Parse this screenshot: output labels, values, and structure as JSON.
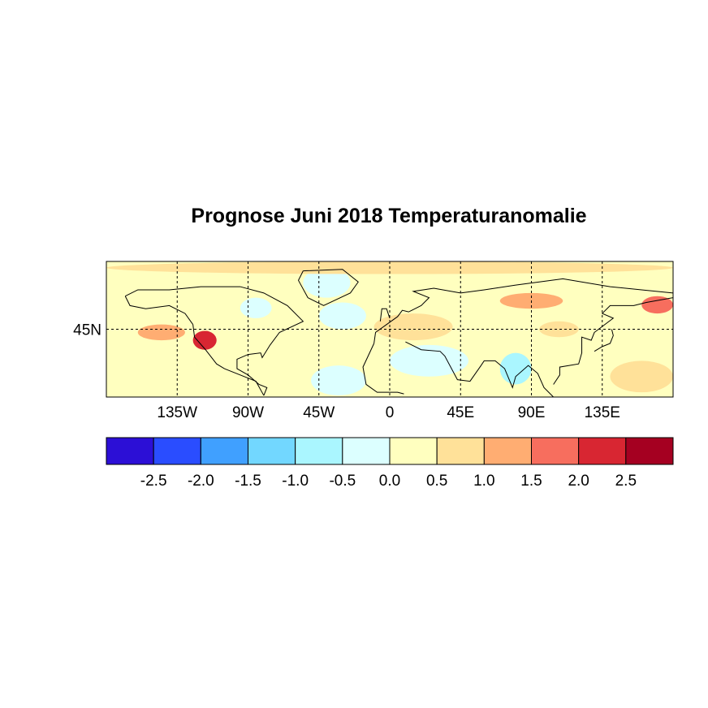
{
  "chart_data": {
    "type": "heatmap",
    "title": "Prognose Juni 2018 Temperaturanomalie",
    "xlim": [
      -180,
      180
    ],
    "ylim": [
      2,
      88
    ],
    "x_ticks": [
      {
        "value": -135,
        "label": "135W"
      },
      {
        "value": -90,
        "label": "90W"
      },
      {
        "value": -45,
        "label": "45W"
      },
      {
        "value": 0,
        "label": "0"
      },
      {
        "value": 45,
        "label": "45E"
      },
      {
        "value": 90,
        "label": "90E"
      },
      {
        "value": 135,
        "label": "135E"
      }
    ],
    "y_ticks": [
      {
        "value": 45,
        "label": "45N"
      }
    ],
    "grid": "dashed",
    "colorbar": {
      "colors": [
        "#2c0fd6",
        "#2a4dff",
        "#40a0ff",
        "#72d7ff",
        "#aaf6ff",
        "#dcffff",
        "#ffffbf",
        "#ffe199",
        "#ffad72",
        "#f76e5e",
        "#d82632",
        "#a50021"
      ],
      "labels": [
        "-2.5",
        "-2.0",
        "-1.5",
        "-1.0",
        "-0.5",
        "0.0",
        "0.5",
        "1.0",
        "1.5",
        "2.0",
        "2.5"
      ]
    },
    "background_anomaly": 0.3,
    "regions": [
      {
        "name": "western USA",
        "lon": [
          -125,
          -110
        ],
        "lat": [
          32,
          44
        ],
        "value": 2.2
      },
      {
        "name": "NE Pacific",
        "lon": [
          -160,
          -130
        ],
        "lat": [
          38,
          48
        ],
        "value": 1.2
      },
      {
        "name": "Central Siberia",
        "lon": [
          70,
          110
        ],
        "lat": [
          58,
          68
        ],
        "value": 1.3
      },
      {
        "name": "Greenland",
        "lon": [
          -55,
          -25
        ],
        "lat": [
          65,
          84
        ],
        "value": -0.3
      },
      {
        "name": "North Atlantic",
        "lon": [
          -45,
          -15
        ],
        "lat": [
          45,
          62
        ],
        "value": -0.4
      },
      {
        "name": "Tropical Atlantic",
        "lon": [
          -50,
          -15
        ],
        "lat": [
          3,
          22
        ],
        "value": -0.2
      },
      {
        "name": "Arabia/Sahara",
        "lon": [
          0,
          50
        ],
        "lat": [
          15,
          35
        ],
        "value": -0.1
      },
      {
        "name": "India",
        "lon": [
          70,
          90
        ],
        "lat": [
          10,
          30
        ],
        "value": -0.6
      },
      {
        "name": "Hudson Bay",
        "lon": [
          -95,
          -75
        ],
        "lat": [
          52,
          65
        ],
        "value": -0.3
      },
      {
        "name": "Europe",
        "lon": [
          -10,
          40
        ],
        "lat": [
          38,
          55
        ],
        "value": 0.8
      },
      {
        "name": "Arctic",
        "lon": [
          -180,
          180
        ],
        "lat": [
          80,
          88
        ],
        "value": 0.6
      },
      {
        "name": "West Pacific",
        "lon": [
          140,
          180
        ],
        "lat": [
          5,
          25
        ],
        "value": 0.7
      },
      {
        "name": "Bering",
        "lon": [
          160,
          180
        ],
        "lat": [
          55,
          66
        ],
        "value": 1.6
      },
      {
        "name": "Mongolia",
        "lon": [
          95,
          120
        ],
        "lat": [
          40,
          50
        ],
        "value": 0.9
      }
    ]
  }
}
